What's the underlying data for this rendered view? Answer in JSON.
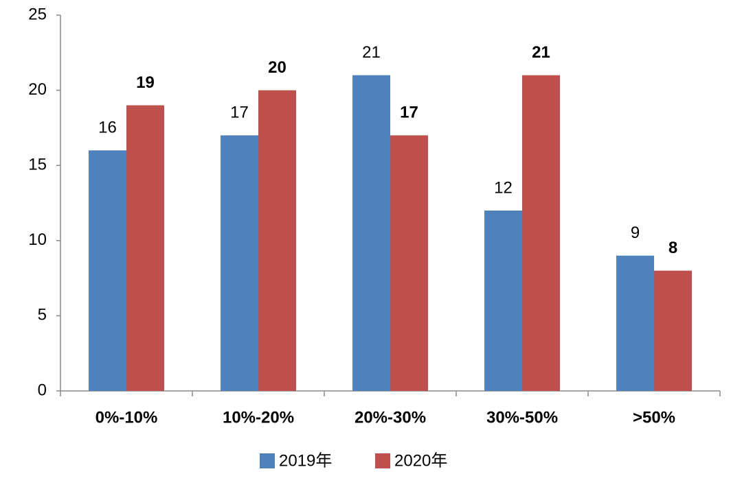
{
  "chart_data": {
    "type": "bar",
    "categories": [
      "0%-10%",
      "10%-20%",
      "20%-30%",
      "30%-50%",
      ">50%"
    ],
    "series": [
      {
        "name": "2019年",
        "color": "#4f81bd",
        "values": [
          16,
          17,
          21,
          12,
          9
        ]
      },
      {
        "name": "2020年",
        "color": "#c0504d",
        "values": [
          19,
          20,
          17,
          21,
          8
        ]
      }
    ],
    "ylim": [
      0,
      25
    ],
    "yticks": [
      0,
      5,
      10,
      15,
      20,
      25
    ],
    "grid": false,
    "legend": "bottom"
  }
}
